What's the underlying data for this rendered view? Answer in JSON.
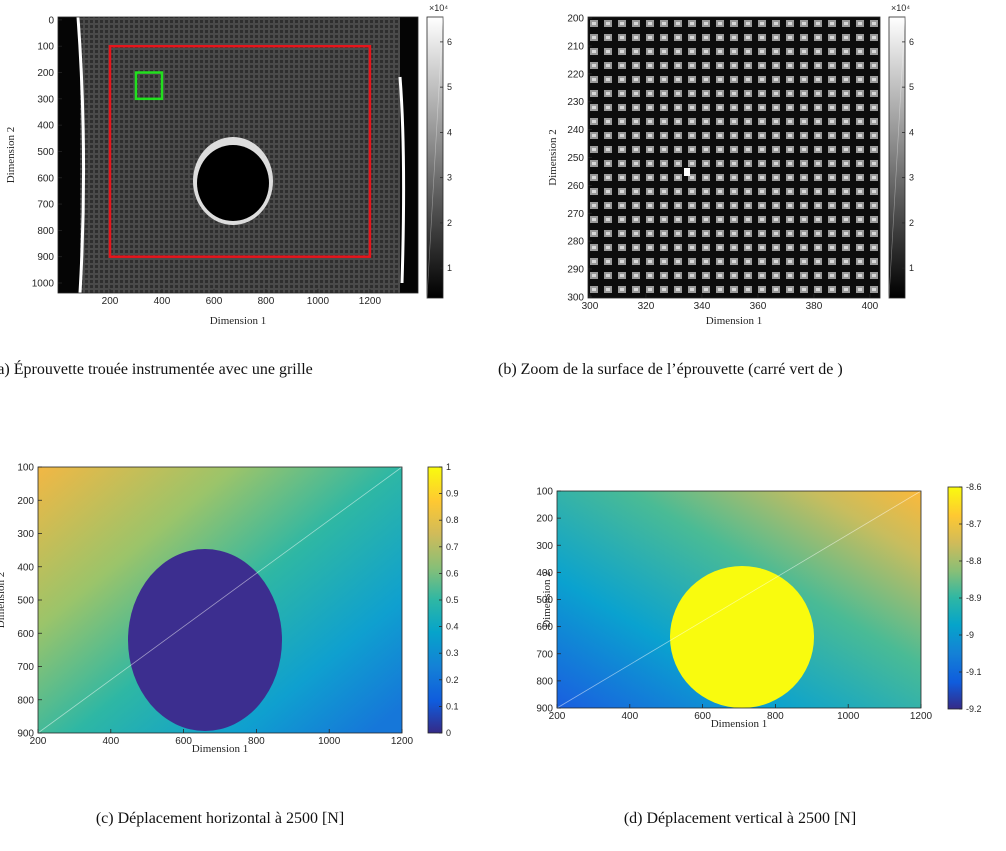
{
  "chart_data": [
    {
      "type": "image",
      "caption": "(a) Éprouvette trouée instrumentée avec une grille",
      "xlabel": "Dimension 1",
      "ylabel": "Dimension 2",
      "xlim": [
        0,
        1385
      ],
      "ylim": [
        -11,
        1038
      ],
      "ydir": "reverse",
      "xticks": [
        200,
        400,
        600,
        800,
        1000,
        1200
      ],
      "yticks": [
        0,
        100,
        200,
        300,
        400,
        500,
        600,
        700,
        800,
        900,
        1000
      ],
      "colormap": "gray",
      "clim": [
        0.34,
        6.55
      ],
      "cticks": [
        1,
        2,
        3,
        4,
        5,
        6
      ],
      "cscale": "×10⁴",
      "overlays": [
        {
          "x": [
            200,
            1200
          ],
          "y": [
            100,
            900
          ],
          "color": "#e8141b"
        },
        {
          "x": [
            300,
            400
          ],
          "y": [
            200,
            300
          ],
          "color": "#22e01e"
        }
      ]
    },
    {
      "type": "image",
      "caption": "(b) Zoom de la surface de l’éprouvette (carré vert de )",
      "xlabel": "Dimension 1",
      "ylabel": "Dimension 2",
      "xlim": [
        299.3,
        403.6
      ],
      "ylim": [
        199.6,
        300.4
      ],
      "ydir": "reverse",
      "xticks": [
        300,
        320,
        340,
        360,
        380,
        400
      ],
      "yticks": [
        200,
        210,
        220,
        230,
        240,
        250,
        260,
        270,
        280,
        290,
        300
      ],
      "colormap": "gray",
      "clim": [
        0.34,
        6.55
      ],
      "cticks": [
        1,
        2,
        3,
        4,
        5,
        6
      ],
      "cscale": "×10⁴"
    },
    {
      "type": "image",
      "caption": "(c) Déplacement horizontal à 2500 [N]",
      "xlabel": "Dimension 1",
      "ylabel": "Dimension 2",
      "xlim": [
        200,
        1200
      ],
      "ylim": [
        100,
        900
      ],
      "ydir": "reverse",
      "xticks": [
        200,
        400,
        600,
        800,
        1000,
        1200
      ],
      "yticks": [
        100,
        200,
        300,
        400,
        500,
        600,
        700,
        800,
        900
      ],
      "colormap": "parula",
      "clim": [
        0,
        1
      ],
      "cticks": [
        0,
        0.1,
        0.2,
        0.3,
        0.4,
        0.5,
        0.6,
        0.7,
        0.8,
        0.9,
        1
      ]
    },
    {
      "type": "image",
      "caption": "(d) Déplacement vertical à 2500 [N]",
      "xlabel": "Dimension 1",
      "ylabel": "Dimension 2",
      "xlim": [
        200,
        1200
      ],
      "ylim": [
        100,
        900
      ],
      "ydir": "reverse",
      "xticks": [
        200,
        400,
        600,
        800,
        1000,
        1200
      ],
      "yticks": [
        100,
        200,
        300,
        400,
        500,
        600,
        700,
        800,
        900
      ],
      "colormap": "parula",
      "clim": [
        -9.2,
        -8.6
      ],
      "cticks": [
        -9.2,
        -9.1,
        -9,
        -8.9,
        -8.8,
        -8.7,
        -8.6
      ]
    }
  ]
}
